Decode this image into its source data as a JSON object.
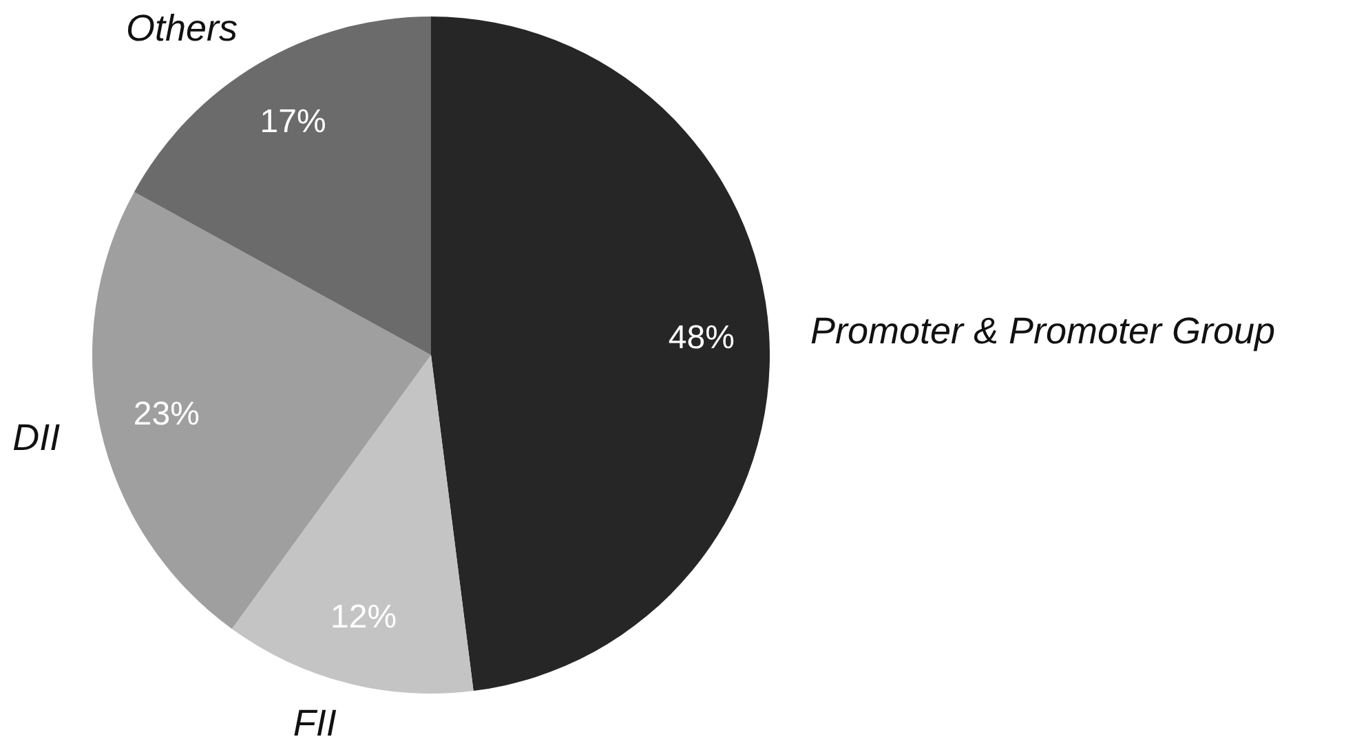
{
  "chart_data": {
    "type": "pie",
    "categories": [
      "Promoter & Promoter Group",
      "FII",
      "DII",
      "Others"
    ],
    "values": [
      48,
      12,
      23,
      17
    ],
    "colors": [
      "#262626",
      "#c4c4c4",
      "#9f9f9f",
      "#6b6b6b"
    ],
    "value_labels": [
      "48%",
      "12%",
      "23%",
      "17%"
    ]
  }
}
